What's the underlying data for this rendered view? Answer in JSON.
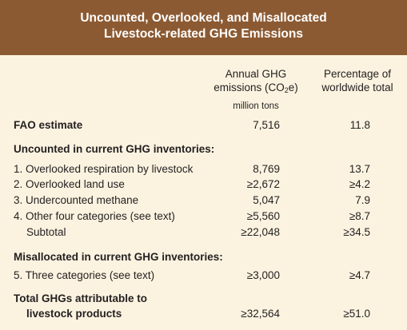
{
  "title": {
    "line1": "Uncounted, Overlooked, and Misallocated",
    "line2": "Livestock-related GHG Emissions"
  },
  "columns": {
    "col1_line1": "Annual GHG",
    "col1_line2_prefix": "emissions (CO",
    "col1_line2_sub": "2",
    "col1_line2_suffix": "e)",
    "col2_line1": "Percentage of",
    "col2_line2": "worldwide total",
    "units": "million tons"
  },
  "fao": {
    "label": "FAO estimate",
    "emissions": "7,516",
    "percent": "11.8"
  },
  "uncounted": {
    "heading": "Uncounted in current GHG inventories:",
    "rows": [
      {
        "label": "1. Overlooked respiration by livestock",
        "emissions": "8,769",
        "percent": "13.7"
      },
      {
        "label": "2. Overlooked land use",
        "emissions": "≥2,672",
        "percent": "≥4.2"
      },
      {
        "label": "3. Undercounted methane",
        "emissions": "5,047",
        "percent": "7.9"
      },
      {
        "label": "4. Other four categories (see text)",
        "emissions": "≥5,560",
        "percent": "≥8.7"
      }
    ],
    "subtotal": {
      "label": "Subtotal",
      "emissions": "≥22,048",
      "percent": "≥34.5"
    }
  },
  "misallocated": {
    "heading": "Misallocated in current GHG inventories:",
    "row": {
      "label": "5. Three categories (see text)",
      "emissions": "≥3,000",
      "percent": "≥4.7"
    }
  },
  "total": {
    "line1": "Total GHGs attributable to",
    "line2": "livestock products",
    "emissions": "≥32,564",
    "percent": "≥51.0"
  }
}
